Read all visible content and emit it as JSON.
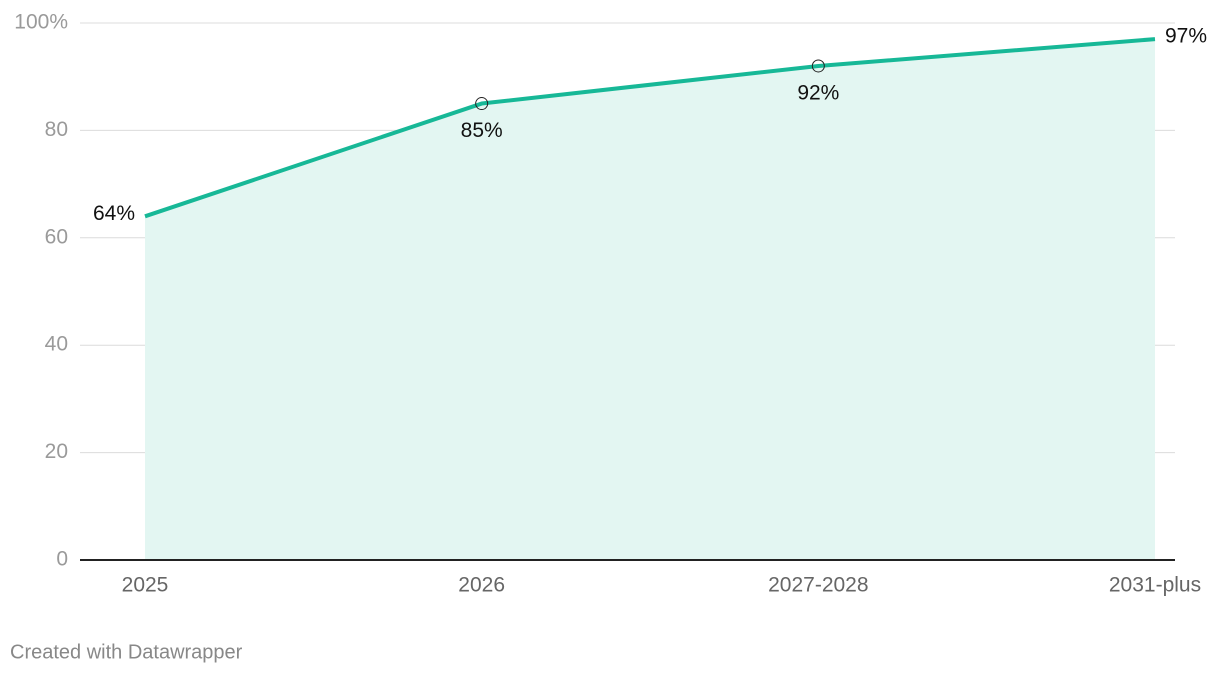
{
  "chart_data": {
    "type": "area-line",
    "categories": [
      "2025",
      "2026",
      "2027-2028",
      "2031-plus"
    ],
    "values": [
      64,
      85,
      92,
      97
    ],
    "value_labels": [
      "64%",
      "85%",
      "92%",
      "97%"
    ],
    "color": "#17b897",
    "fill": "#e3f6f2",
    "ylim": [
      0,
      100
    ],
    "yticks": [
      0,
      20,
      40,
      60,
      80,
      {
        "value": 100,
        "label": "100%"
      }
    ],
    "grid": true
  },
  "footer": "Created with Datawrapper"
}
